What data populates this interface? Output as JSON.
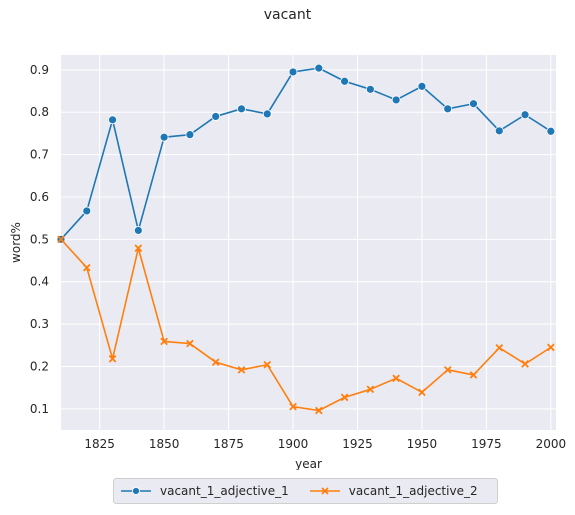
{
  "chart_data": {
    "type": "line",
    "title": "vacant",
    "xlabel": "year",
    "ylabel": "word%",
    "xlim": [
      1810,
      2002
    ],
    "ylim": [
      0.05,
      0.935
    ],
    "xticks": [
      1825,
      1850,
      1875,
      1900,
      1925,
      1950,
      1975,
      2000
    ],
    "yticks": [
      0.1,
      0.2,
      0.3,
      0.4,
      0.5,
      0.6,
      0.7,
      0.8,
      0.9
    ],
    "grid": true,
    "legend_position": "bottom-center",
    "x": [
      1810,
      1820,
      1830,
      1840,
      1850,
      1860,
      1870,
      1880,
      1890,
      1900,
      1910,
      1920,
      1930,
      1940,
      1950,
      1960,
      1970,
      1980,
      1990,
      2000
    ],
    "series": [
      {
        "name": "vacant_1_adjective_1",
        "color": "#1f77b4",
        "marker": "circle",
        "values": [
          0.5,
          0.567,
          0.782,
          0.521,
          0.741,
          0.747,
          0.79,
          0.808,
          0.796,
          0.895,
          0.904,
          0.873,
          0.854,
          0.829,
          0.861,
          0.808,
          0.82,
          0.756,
          0.794,
          0.755
        ]
      },
      {
        "name": "vacant_1_adjective_2",
        "color": "#ff7f0e",
        "marker": "x",
        "values": [
          0.5,
          0.433,
          0.218,
          0.479,
          0.259,
          0.254,
          0.21,
          0.192,
          0.204,
          0.105,
          0.096,
          0.127,
          0.146,
          0.172,
          0.139,
          0.192,
          0.18,
          0.244,
          0.206,
          0.245
        ]
      }
    ]
  }
}
